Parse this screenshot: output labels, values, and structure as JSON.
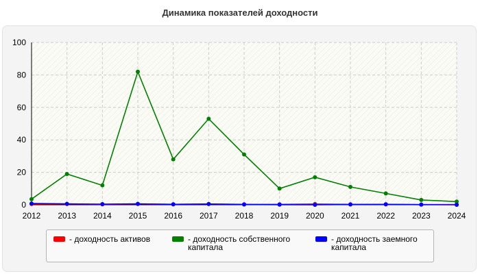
{
  "chart_data": {
    "type": "line",
    "title": "Динамика показателей доходности",
    "xlabel": "",
    "ylabel": "",
    "x": [
      "2012",
      "2013",
      "2014",
      "2015",
      "2016",
      "2017",
      "2018",
      "2019",
      "2020",
      "2021",
      "2022",
      "2023",
      "2024"
    ],
    "ylim": [
      0,
      100
    ],
    "yticks": [
      0,
      20,
      40,
      60,
      80,
      100
    ],
    "grid": true,
    "legend_position": "bottom",
    "series": [
      {
        "name": "- доходность активов",
        "color": "#ff0000",
        "values": [
          0.5,
          0.5,
          0.3,
          0.5,
          0.3,
          0.5,
          0.3,
          0.3,
          0.5,
          0.3,
          0.3,
          0.2,
          0.2
        ]
      },
      {
        "name": "- доходность собственного капитала",
        "color": "#008000",
        "values": [
          3.5,
          19,
          12,
          82,
          28,
          53,
          31,
          10,
          17,
          11,
          7,
          3,
          2
        ]
      },
      {
        "name": "- доходность заемного капитала",
        "color": "#0000ff",
        "values": [
          0.8,
          0.6,
          0.4,
          0.6,
          0.3,
          0.5,
          0.2,
          0.1,
          0.0,
          0.2,
          0.3,
          0.1,
          0.0
        ]
      }
    ]
  }
}
